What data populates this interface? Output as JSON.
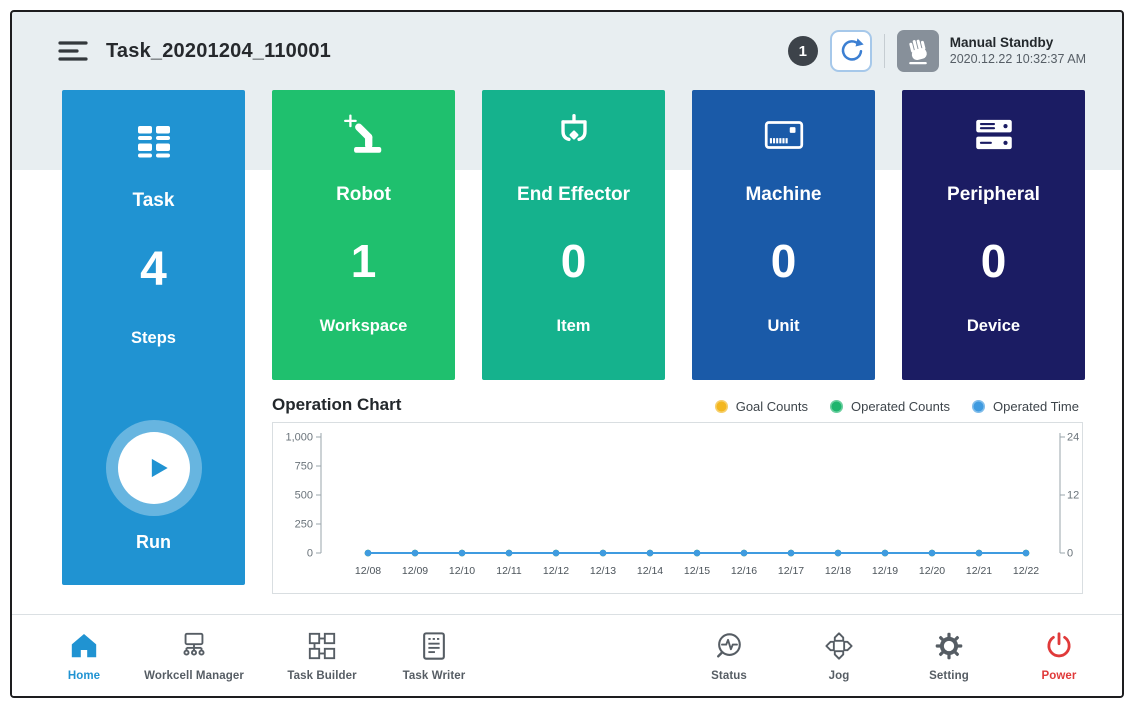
{
  "header": {
    "title": "Task_20201204_110001",
    "notification_count": "1",
    "mode_label": "Manual Standby",
    "datetime": "2020.12.22 10:32:37 AM"
  },
  "task_panel": {
    "title": "Task",
    "value": "4",
    "unit": "Steps",
    "run_label": "Run",
    "color": "#2093d2"
  },
  "cards": [
    {
      "title": "Robot",
      "value": "1",
      "unit": "Workspace",
      "color": "#1fc06e",
      "icon": "robot-arm-icon"
    },
    {
      "title": "End Effector",
      "value": "0",
      "unit": "Item",
      "color": "#15b28d",
      "icon": "gripper-icon"
    },
    {
      "title": "Machine",
      "value": "0",
      "unit": "Unit",
      "color": "#1a5aa8",
      "icon": "machine-icon"
    },
    {
      "title": "Peripheral",
      "value": "0",
      "unit": "Device",
      "color": "#1b1c63",
      "icon": "peripheral-icon"
    }
  ],
  "chart_data": {
    "type": "line",
    "title": "Operation Chart",
    "x": [
      "12/08",
      "12/09",
      "12/10",
      "12/11",
      "12/12",
      "12/13",
      "12/14",
      "12/15",
      "12/16",
      "12/17",
      "12/18",
      "12/19",
      "12/20",
      "12/21",
      "12/22"
    ],
    "series": [
      {
        "name": "Goal Counts",
        "color": "#f3b71f",
        "axis": "left",
        "values": [
          0,
          0,
          0,
          0,
          0,
          0,
          0,
          0,
          0,
          0,
          0,
          0,
          0,
          0,
          0
        ]
      },
      {
        "name": "Operated Counts",
        "color": "#1eb56d",
        "axis": "left",
        "values": [
          0,
          0,
          0,
          0,
          0,
          0,
          0,
          0,
          0,
          0,
          0,
          0,
          0,
          0,
          0
        ]
      },
      {
        "name": "Operated Time",
        "color": "#3f9be0",
        "axis": "right",
        "values": [
          0,
          0,
          0,
          0,
          0,
          0,
          0,
          0,
          0,
          0,
          0,
          0,
          0,
          0,
          0
        ]
      }
    ],
    "left_axis": {
      "range": [
        0,
        1000
      ],
      "ticks": [
        0,
        250,
        500,
        750,
        1000
      ],
      "labels": [
        "0",
        "250",
        "500",
        "750",
        "1,000"
      ]
    },
    "right_axis": {
      "range": [
        0,
        24
      ],
      "ticks": [
        0,
        12,
        24
      ],
      "labels": [
        "0",
        "12",
        "24"
      ]
    },
    "grid": false,
    "legend_position": "top-right"
  },
  "nav": {
    "active_color": "#2093d2",
    "power_color": "#e03a3a",
    "left": [
      {
        "label": "Home",
        "icon": "home-icon",
        "active": true
      },
      {
        "label": "Workcell Manager",
        "icon": "workcell-manager-icon",
        "active": false
      },
      {
        "label": "Task Builder",
        "icon": "task-builder-icon",
        "active": false
      },
      {
        "label": "Task Writer",
        "icon": "task-writer-icon",
        "active": false
      }
    ],
    "right": [
      {
        "label": "Status",
        "icon": "status-icon",
        "active": false
      },
      {
        "label": "Jog",
        "icon": "jog-icon",
        "active": false
      },
      {
        "label": "Setting",
        "icon": "setting-icon",
        "active": false
      },
      {
        "label": "Power",
        "icon": "power-icon",
        "active": false
      }
    ]
  }
}
